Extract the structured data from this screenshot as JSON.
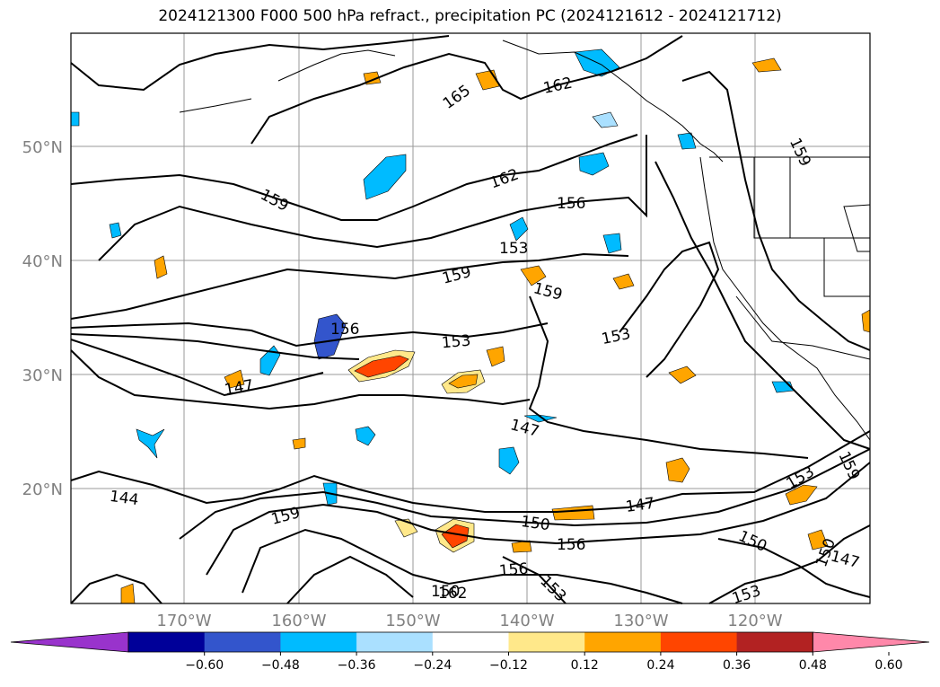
{
  "title": "2024121300 F000 500 hPa refract., precipitation PC (2024121612 - 2024121712)",
  "lat_labels": [
    "50°N",
    "40°N",
    "30°N",
    "20°N"
  ],
  "lon_labels": [
    "170°W",
    "160°W",
    "150°W",
    "140°W",
    "130°W",
    "120°W"
  ],
  "colorbar": {
    "colors": [
      "#9933cc",
      "#000099",
      "#3355cc",
      "#00bbff",
      "#aae0ff",
      "#ffffff",
      "#ffe88a",
      "#ffa500",
      "#ff4500",
      "#b22222",
      "#ff88aa"
    ],
    "ticks": [
      "−0.60",
      "−0.48",
      "−0.36",
      "−0.24",
      "−0.12",
      "0.12",
      "0.24",
      "0.36",
      "0.48",
      "0.60"
    ]
  },
  "contour_labels": [
    "165",
    "162",
    "162",
    "159",
    "156",
    "153",
    "159",
    "159",
    "156",
    "153",
    "153",
    "147",
    "147",
    "144",
    "159",
    "150",
    "147",
    "156",
    "156",
    "150",
    "153",
    "153",
    "150",
    "147",
    "150",
    "153",
    "159",
    "159",
    "150",
    "162"
  ]
}
